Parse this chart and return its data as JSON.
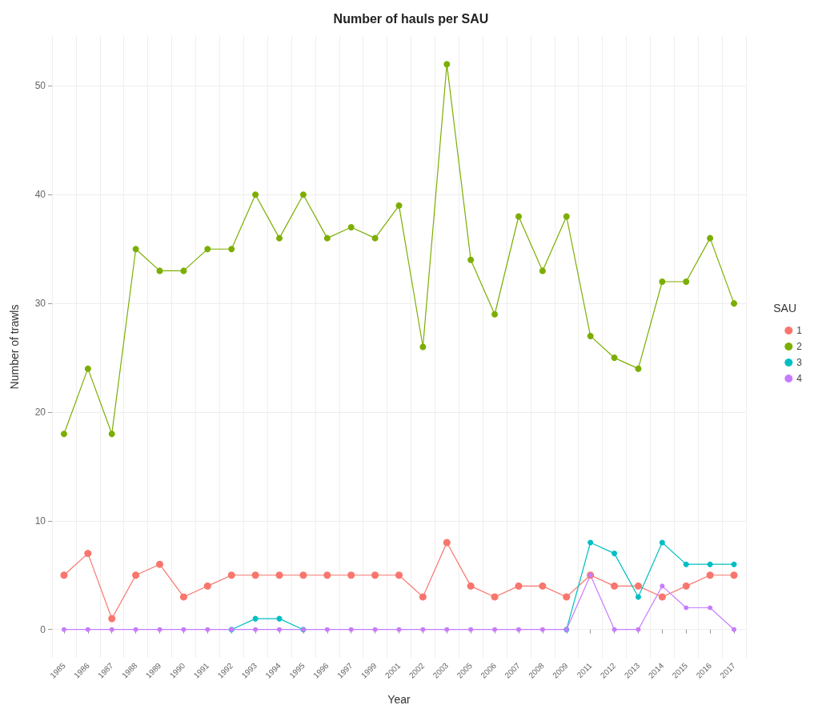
{
  "chart_data": {
    "type": "line",
    "title": "Number of hauls per SAU",
    "xlabel": "Year",
    "ylabel": "Number of trawls",
    "legend_title": "SAU",
    "legend": "right",
    "grid": true,
    "marker": "circle",
    "line_style": "solid",
    "categories": [
      "1985",
      "1986",
      "1987",
      "1988",
      "1989",
      "1990",
      "1991",
      "1992",
      "1993",
      "1994",
      "1995",
      "1996",
      "1997",
      "1999",
      "2001",
      "2002",
      "2003",
      "2005",
      "2006",
      "2007",
      "2008",
      "2009",
      "2011",
      "2012",
      "2013",
      "2014",
      "2015",
      "2016",
      "2017"
    ],
    "ylim": [
      -2.6,
      54.6
    ],
    "yticks": [
      0,
      10,
      20,
      30,
      40,
      50
    ],
    "series": [
      {
        "name": "1",
        "color": "#f8766d",
        "values": [
          5,
          7,
          1,
          5,
          6,
          3,
          4,
          5,
          5,
          5,
          5,
          5,
          5,
          5,
          5,
          3,
          8,
          4,
          3,
          4,
          4,
          3,
          5,
          4,
          4,
          3,
          4,
          5,
          5
        ]
      },
      {
        "name": "2",
        "color": "#7cae00",
        "values": [
          18,
          24,
          18,
          35,
          33,
          33,
          35,
          35,
          40,
          36,
          40,
          36,
          37,
          36,
          39,
          26,
          52,
          34,
          29,
          38,
          33,
          38,
          27,
          25,
          24,
          32,
          32,
          36,
          30
        ]
      },
      {
        "name": "3",
        "color": "#00bfc4",
        "values": [
          null,
          null,
          null,
          null,
          null,
          null,
          null,
          0,
          1,
          1,
          0,
          null,
          null,
          null,
          null,
          null,
          null,
          null,
          null,
          null,
          null,
          0,
          8,
          7,
          3,
          8,
          6,
          6,
          6
        ]
      },
      {
        "name": "4",
        "color": "#c77cff",
        "values": [
          0,
          0,
          0,
          0,
          0,
          0,
          0,
          0,
          0,
          0,
          0,
          0,
          0,
          0,
          0,
          0,
          0,
          0,
          0,
          0,
          0,
          0,
          5,
          0,
          0,
          4,
          2,
          2,
          0
        ]
      }
    ]
  }
}
